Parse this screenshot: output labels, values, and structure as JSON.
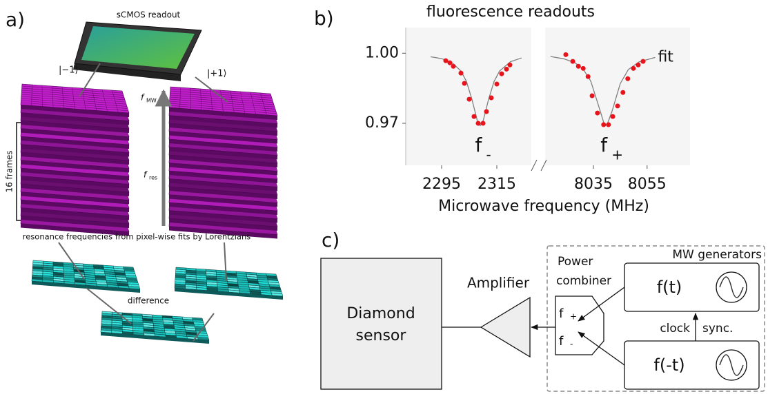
{
  "panel_a": {
    "label": "a)",
    "readout": "sCMOS readout",
    "ket_minus": "|−1⟩",
    "ket_plus": "|+1⟩",
    "f_mw": "f",
    "f_mw_sub": "MW",
    "f_res": "f",
    "f_res_sub": "res",
    "frames": "16 frames",
    "fits": "resonance frequencies from pixel-wise fits by Lorentzians",
    "difference": "difference"
  },
  "panel_b": {
    "label": "b)"
  },
  "chart_data": [
    {
      "type": "scatter",
      "title": "fluorescence readouts",
      "xlabel": "Microwave frequency (MHz)",
      "xlim": [
        2282,
        2327.5
      ],
      "xticks": [
        2295,
        2315
      ],
      "ylim": [
        0.952,
        1.011
      ],
      "yticks": [
        {
          "value": 1,
          "label": "1.00"
        },
        0.97
      ],
      "annotation": {
        "text": "f",
        "sub": "-"
      },
      "series": [
        {
          "color": "#808080",
          "style": "line",
          "x": [
            2291,
            2295,
            2299,
            2302,
            2304,
            2306,
            2308,
            2309,
            2310,
            2312,
            2314,
            2316,
            2320,
            2324
          ],
          "values": [
            0.9985,
            0.9977,
            0.9957,
            0.9924,
            0.9879,
            0.9802,
            0.9708,
            0.969,
            0.9708,
            0.9802,
            0.9879,
            0.9924,
            0.9964,
            0.998
          ]
        },
        {
          "color": "#e8141c",
          "style": "markers",
          "x": [
            2296.5,
            2298,
            2299.25,
            2302,
            2303.25,
            2305,
            2306.75,
            2308.25,
            2310,
            2311.25,
            2313,
            2315,
            2316.75,
            2318.5,
            2319.75
          ],
          "values": [
            0.9968,
            0.9959,
            0.9944,
            0.9915,
            0.9871,
            0.9803,
            0.9729,
            0.97,
            0.97,
            0.975,
            0.9809,
            0.9868,
            0.9912,
            0.9932,
            0.995
          ]
        }
      ]
    },
    {
      "type": "scatter",
      "xlim": [
        8017,
        8071
      ],
      "xticks": [
        8035,
        8055
      ],
      "ylim": [
        0.952,
        1.011
      ],
      "annotation": {
        "text": "f",
        "sub": "+"
      },
      "series": [
        {
          "name": "fit",
          "color": "#808080",
          "style": "line",
          "x": [
            8019,
            8024,
            8028,
            8031,
            8034,
            8037,
            8039,
            8040,
            8042,
            8045,
            8048,
            8052,
            8058
          ],
          "values": [
            0.9986,
            0.9976,
            0.996,
            0.9935,
            0.9881,
            0.9772,
            0.9697,
            0.9691,
            0.9754,
            0.987,
            0.993,
            0.9963,
            0.9982
          ]
        },
        {
          "color": "#e8141c",
          "style": "markers",
          "x": [
            8024.7,
            8027.3,
            8029.4,
            8031.2,
            8033,
            8034.5,
            8036.5,
            8038.8,
            8040.6,
            8042.2,
            8044,
            8046,
            8047.8,
            8049.9,
            8051.7,
            8053.5
          ],
          "values": [
            0.9994,
            0.9965,
            0.9944,
            0.9935,
            0.99,
            0.9818,
            0.9744,
            0.9694,
            0.9694,
            0.9729,
            0.9774,
            0.9832,
            0.9891,
            0.9935,
            0.995,
            0.9965
          ]
        }
      ]
    }
  ],
  "panel_c": {
    "label": "c)",
    "sensor": [
      "Diamond",
      "sensor"
    ],
    "amplifier": "Amplifier",
    "combiner": [
      "Power",
      "combiner"
    ],
    "generators": "MW generators",
    "gen_top": "f(t)",
    "gen_bottom": "f(-t)",
    "clock": "clock",
    "sync": "sync.",
    "in_plus": "f",
    "in_plus_sub": "+",
    "in_minus": "f",
    "in_minus_sub": "-"
  }
}
